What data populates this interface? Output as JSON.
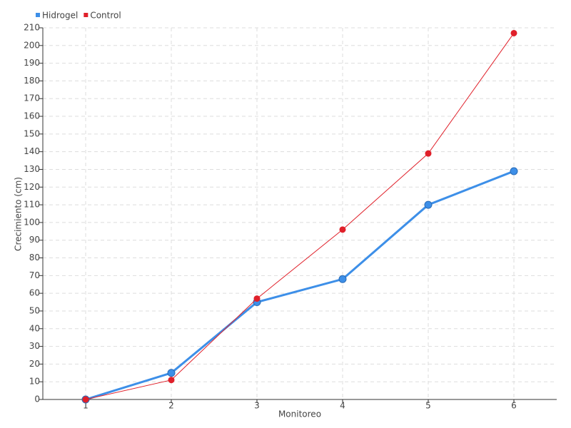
{
  "chart_data": {
    "type": "line",
    "x_label": "Monitoreo",
    "y_label": "Crecimiento (cm)",
    "x": [
      1,
      2,
      3,
      4,
      5,
      6
    ],
    "series": [
      {
        "name": "Hidrogel",
        "color": "#3d8fe8",
        "values": [
          0,
          15,
          55,
          68,
          110,
          129
        ]
      },
      {
        "name": "Control",
        "color": "#e0202a",
        "values": [
          0,
          11,
          57,
          96,
          139,
          207
        ]
      }
    ],
    "xlim": [
      0.5,
      6.5
    ],
    "xticks": [
      1,
      2,
      3,
      4,
      5,
      6
    ],
    "ylim": [
      0,
      210
    ],
    "yticks": [
      0,
      10,
      20,
      30,
      40,
      50,
      60,
      70,
      80,
      90,
      100,
      110,
      120,
      130,
      140,
      150,
      160,
      170,
      180,
      190,
      200,
      210
    ],
    "grid": true,
    "legend": "top-left"
  }
}
